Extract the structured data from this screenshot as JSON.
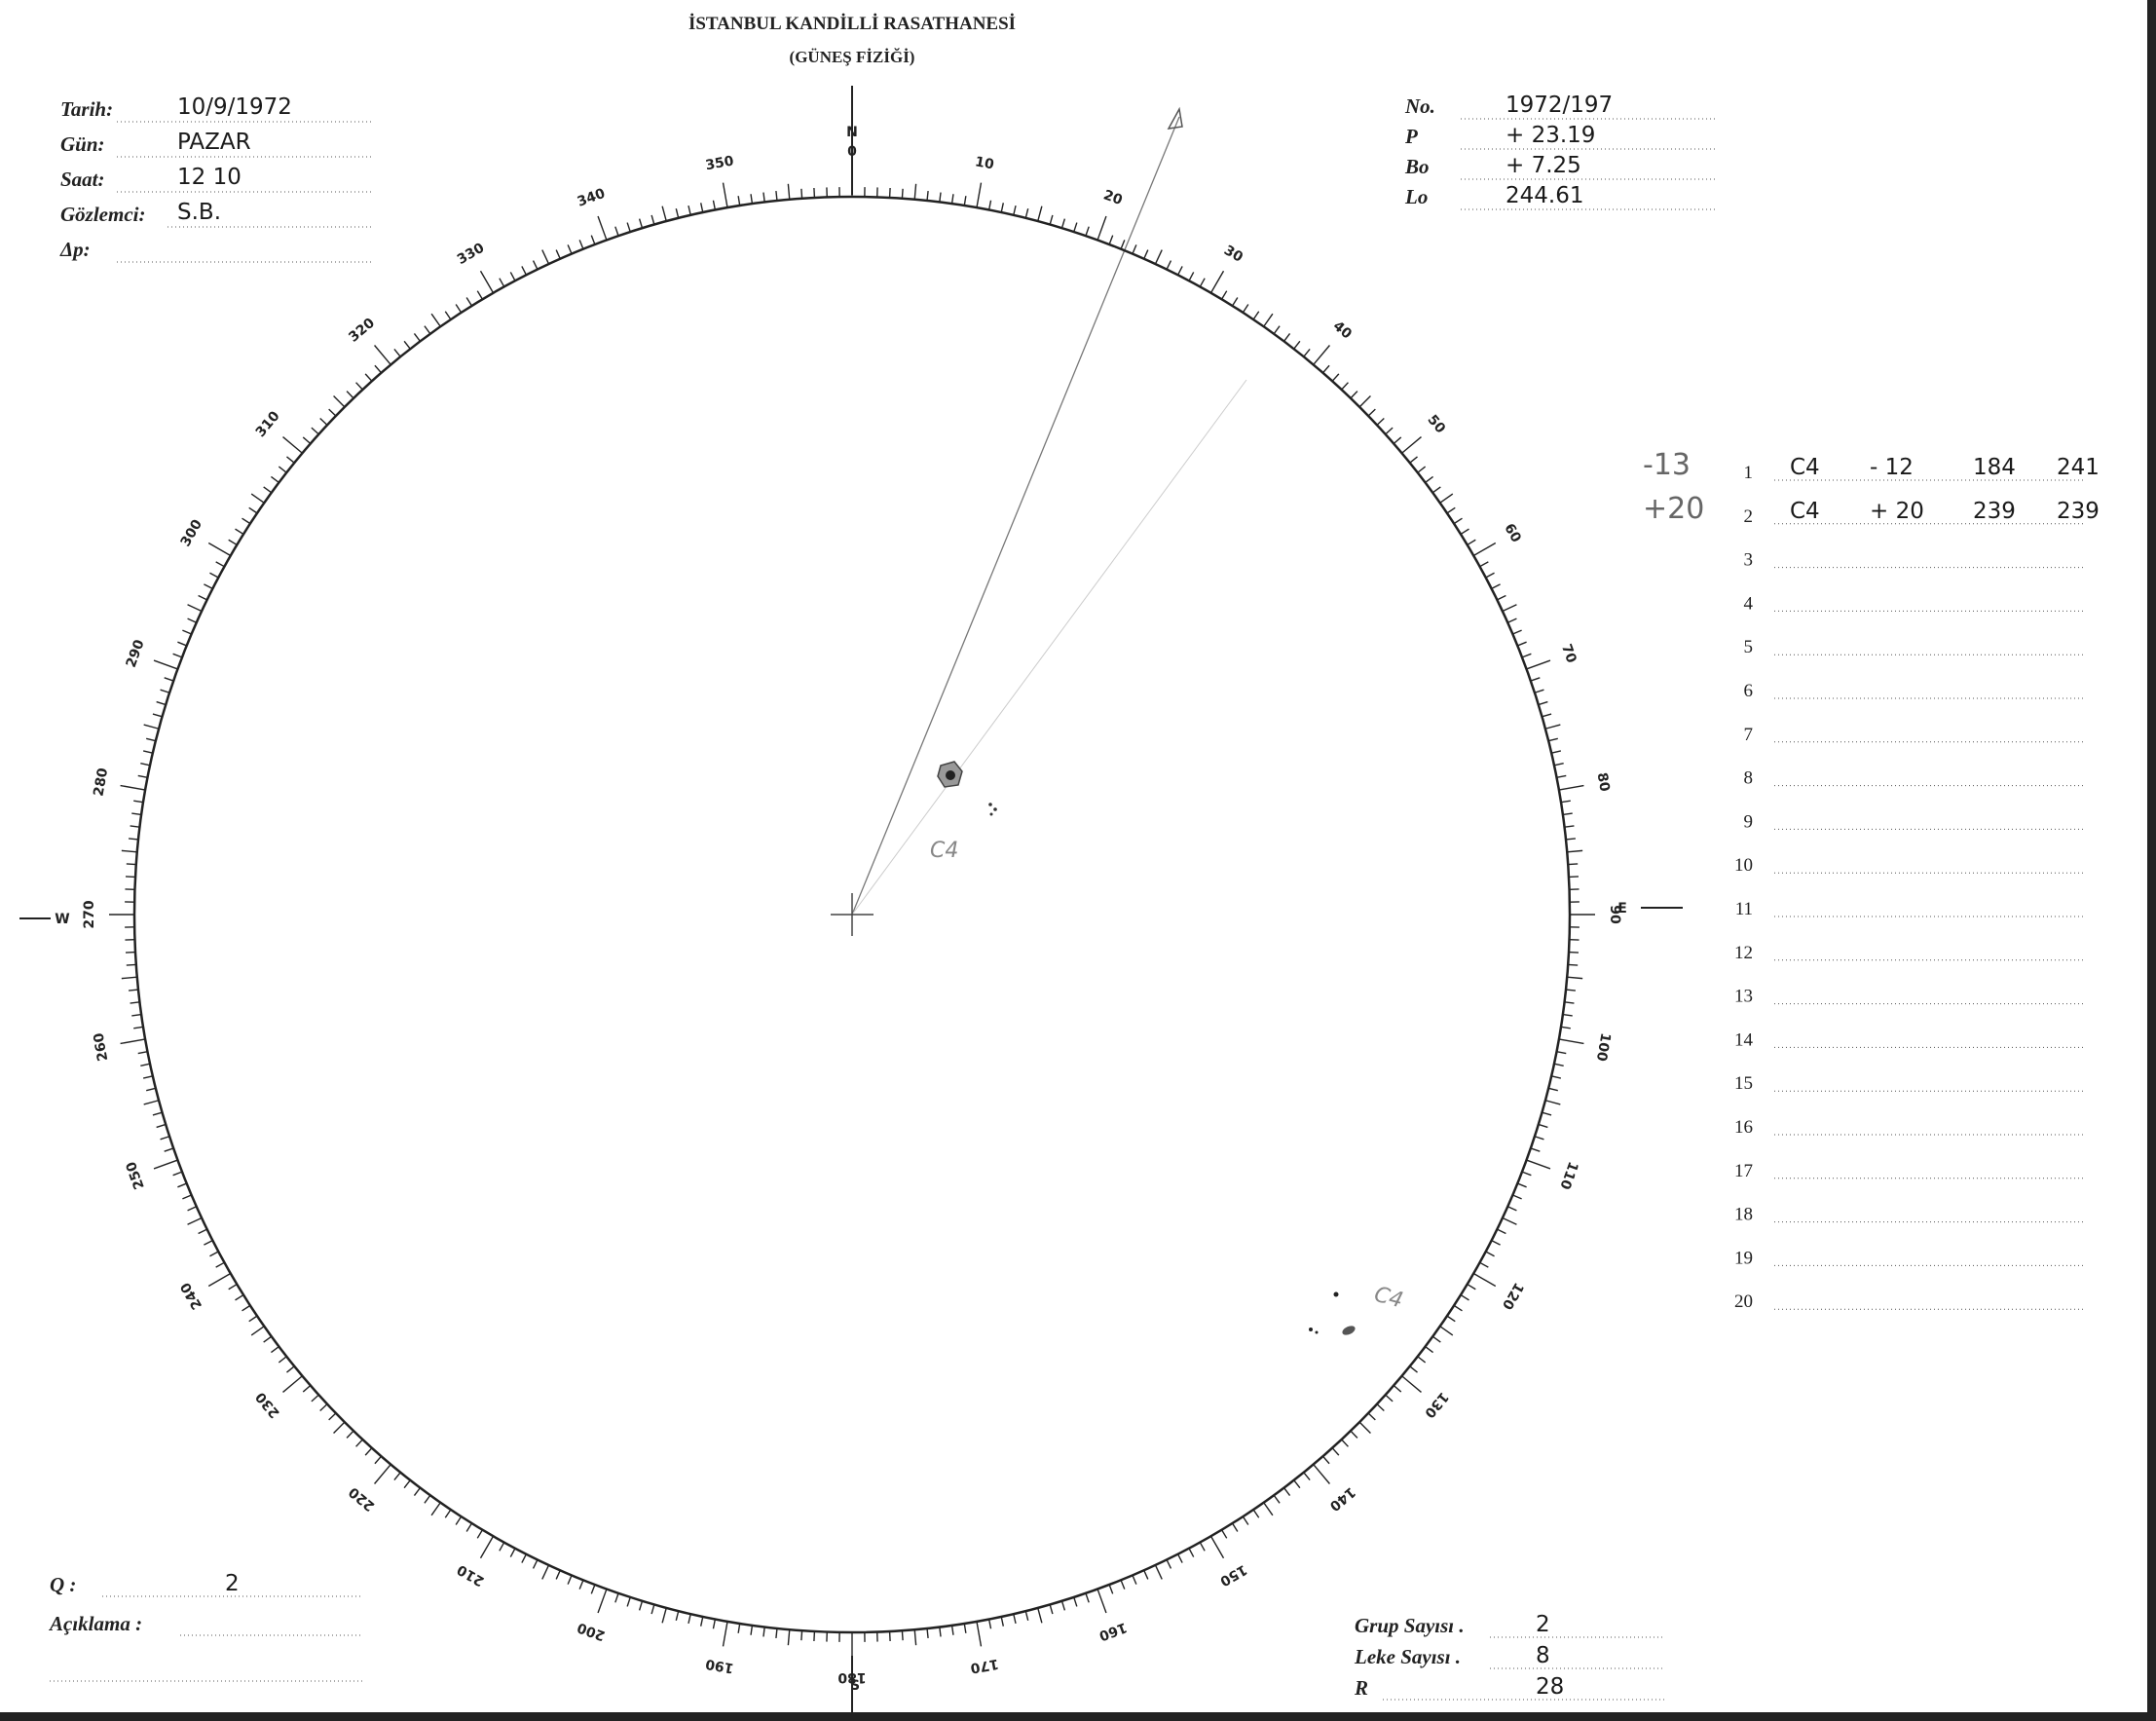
{
  "header": {
    "title": "İSTANBUL KANDİLLİ RASATHANESİ",
    "subtitle": "(GÜNEŞ FİZİĞİ)"
  },
  "left_fields": [
    {
      "label": "Tarih:",
      "value": "10/9/1972"
    },
    {
      "label": "Gün:",
      "value": "PAZAR"
    },
    {
      "label": "Saat:",
      "value": "12 10"
    },
    {
      "label": "Gözlemci:",
      "value": "S.B."
    },
    {
      "label": "Δp:"
    }
  ],
  "right_fields": [
    {
      "label": "No.",
      "value": "1972/197"
    },
    {
      "label": "P",
      "value": "+ 23.19"
    },
    {
      "label": "Bo",
      "value": "+ 7.25"
    },
    {
      "label": "Lo",
      "value": "244.61"
    }
  ],
  "dial": {
    "labels": [
      0,
      10,
      20,
      30,
      40,
      50,
      60,
      70,
      80,
      90,
      100,
      110,
      120,
      130,
      140,
      150,
      160,
      170,
      180,
      190,
      200,
      210,
      220,
      230,
      240,
      250,
      260,
      270,
      280,
      290,
      300,
      310,
      320,
      330,
      340,
      350
    ],
    "directions": {
      "north": "N",
      "east": "E",
      "south": "S",
      "west": "W"
    }
  },
  "drawing": {
    "annotations": [
      "C4",
      "C4"
    ]
  },
  "table": {
    "rows": [
      {
        "n": "1",
        "note": "-13",
        "class": "C4",
        "lat": "- 12",
        "l": "184",
        "L": "241"
      },
      {
        "n": "2",
        "note": "+20",
        "class": "C4",
        "lat": "+ 20",
        "l": "239",
        "L": "239"
      },
      {
        "n": "3"
      },
      {
        "n": "4"
      },
      {
        "n": "5"
      },
      {
        "n": "6"
      },
      {
        "n": "7"
      },
      {
        "n": "8"
      },
      {
        "n": "9"
      },
      {
        "n": "10"
      },
      {
        "n": "11"
      },
      {
        "n": "12"
      },
      {
        "n": "13"
      },
      {
        "n": "14"
      },
      {
        "n": "15"
      },
      {
        "n": "16"
      },
      {
        "n": "17"
      },
      {
        "n": "18"
      },
      {
        "n": "19"
      },
      {
        "n": "20"
      }
    ]
  },
  "footer_left": [
    {
      "label": "Q :",
      "value": "2"
    },
    {
      "label": "Açıklama :"
    }
  ],
  "footer_right": [
    {
      "label": "Grup Sayısı .",
      "value": "2"
    },
    {
      "label": "Leke Sayısı .",
      "value": "8"
    },
    {
      "label": "R",
      "value": "28"
    }
  ]
}
